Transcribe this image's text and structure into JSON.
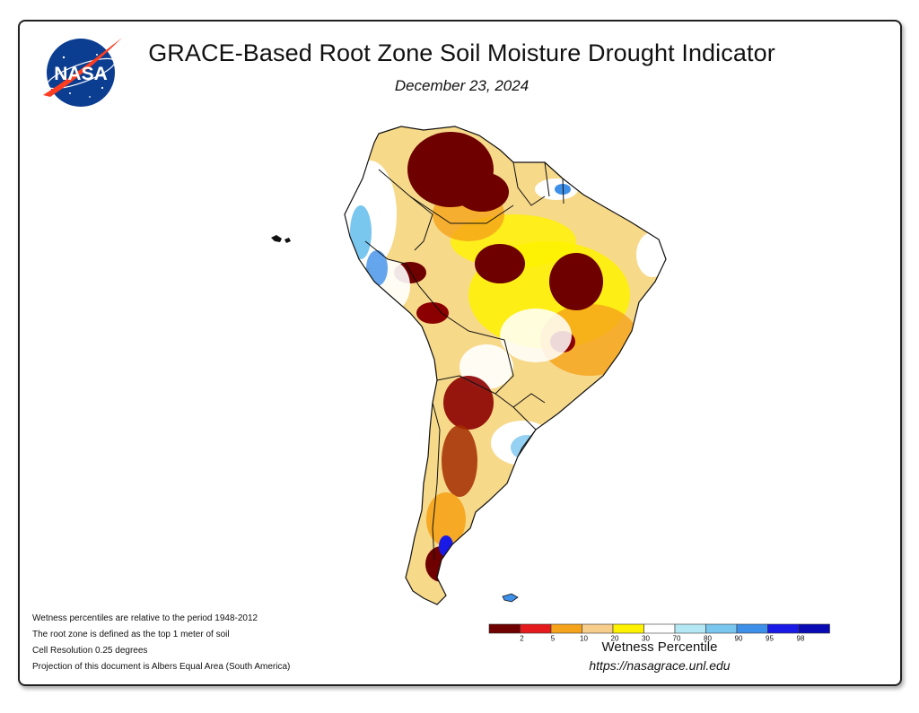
{
  "header": {
    "title": "GRACE-Based Root Zone Soil Moisture Drought Indicator",
    "date": "December 23, 2024"
  },
  "logo": {
    "text": "NASA"
  },
  "notes": [
    "Wetness percentiles are relative to the period 1948-2012",
    "The root zone is defined as the top 1 meter of soil",
    "Cell Resolution 0.25 degrees",
    "Projection of this document is Albers Equal Area (South America)"
  ],
  "legend": {
    "title": "Wetness Percentile",
    "url": "https://nasagrace.unl.edu",
    "colors": [
      "#6e0000",
      "#e41a1c",
      "#f5a31a",
      "#f7cd8c",
      "#fef200",
      "#ffffff",
      "#b5e8f5",
      "#79c6ef",
      "#3d8fe8",
      "#1a1ae6",
      "#0a0ab4"
    ],
    "ticks": [
      "2",
      "5",
      "10",
      "20",
      "30",
      "70",
      "80",
      "90",
      "95",
      "98"
    ]
  },
  "colors": {
    "frame_border": "#222222",
    "text": "#111111",
    "nasa_blue": "#0b3d91",
    "nasa_red": "#fc3d21"
  }
}
